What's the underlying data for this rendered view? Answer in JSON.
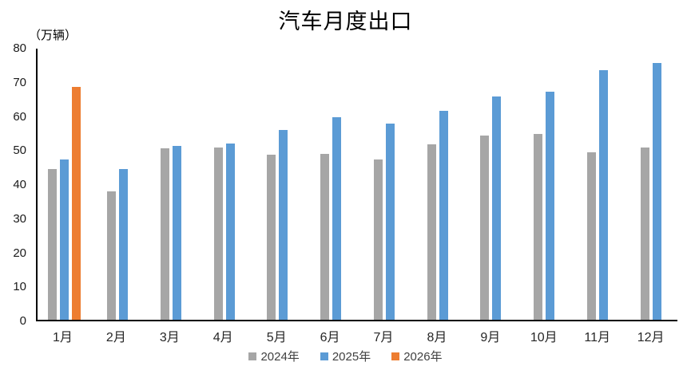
{
  "title": "汽车月度出口",
  "unit_label": "（万辆）",
  "colors": {
    "series_2024": "#A6A6A6",
    "series_2025": "#5B9BD5",
    "series_2026": "#ED7D31",
    "axis": "#000000",
    "tick_text": "#262626",
    "legend_text": "#404040"
  },
  "chart_data": {
    "type": "bar",
    "title": "汽车月度出口",
    "ylabel": "（万辆）",
    "xlabel": "",
    "categories": [
      "1月",
      "2月",
      "3月",
      "4月",
      "5月",
      "6月",
      "7月",
      "8月",
      "9月",
      "10月",
      "11月",
      "12月"
    ],
    "series": [
      {
        "name": "2024年",
        "color": "#A6A6A6",
        "values": [
          44.3,
          37.7,
          50.3,
          50.6,
          48.4,
          48.6,
          47.0,
          51.4,
          54.1,
          54.5,
          49.2,
          50.6
        ]
      },
      {
        "name": "2025年",
        "color": "#5B9BD5",
        "values": [
          47.1,
          44.2,
          50.9,
          51.8,
          55.6,
          59.4,
          57.6,
          61.3,
          65.5,
          66.9,
          73.1,
          75.4
        ]
      },
      {
        "name": "2026年",
        "color": "#ED7D31",
        "values": [
          68.4,
          null,
          null,
          null,
          null,
          null,
          null,
          null,
          null,
          null,
          null,
          null
        ]
      }
    ],
    "ylim": [
      0,
      80
    ],
    "yticks": [
      0,
      10,
      20,
      30,
      40,
      50,
      60,
      70,
      80
    ],
    "grid": false,
    "legend_position": "bottom"
  },
  "legend": {
    "items": [
      {
        "label": "2024年",
        "color": "#A6A6A6"
      },
      {
        "label": "2025年",
        "color": "#5B9BD5"
      },
      {
        "label": "2026年",
        "color": "#ED7D31"
      }
    ]
  }
}
